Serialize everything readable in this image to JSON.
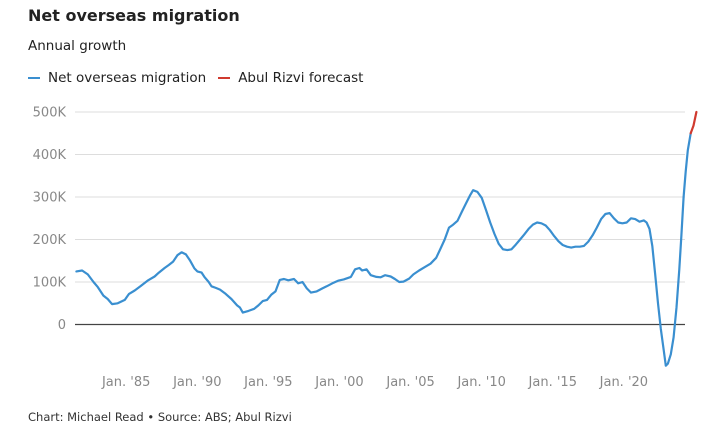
{
  "title": "Net overseas migration",
  "subtitle": "Annual growth",
  "source": "Chart: Michael Read • Source: ABS; Abul Rizvi",
  "colors": {
    "series": "#3a8fd0",
    "forecast": "#d03a2f",
    "grid": "#dddddd",
    "zero": "#444444",
    "ticks": "#888888"
  },
  "chart_data": {
    "type": "line",
    "ylim": [
      -100000,
      500000
    ],
    "xlim": [
      1981.4,
      2024.3
    ],
    "grid": true,
    "legend_position": "top-left",
    "y_ticks": [
      {
        "value": 0,
        "label": "0"
      },
      {
        "value": 100000,
        "label": "100K"
      },
      {
        "value": 200000,
        "label": "200K"
      },
      {
        "value": 300000,
        "label": "300K"
      },
      {
        "value": 400000,
        "label": "400K"
      },
      {
        "value": 500000,
        "label": "500K"
      }
    ],
    "x_ticks": [
      {
        "value": 1985,
        "label": "Jan. '85"
      },
      {
        "value": 1990,
        "label": "Jan. '90"
      },
      {
        "value": 1995,
        "label": "Jan. '95"
      },
      {
        "value": 2000,
        "label": "Jan. '00"
      },
      {
        "value": 2005,
        "label": "Jan. '05"
      },
      {
        "value": 2010,
        "label": "Jan. '10"
      },
      {
        "value": 2015,
        "label": "Jan. '15"
      },
      {
        "value": 2020,
        "label": "Jan. '20"
      }
    ],
    "series": [
      {
        "name": "Net overseas migration",
        "color": "#3a8fd0",
        "points": [
          [
            1981.5,
            125000
          ],
          [
            1981.9,
            127000
          ],
          [
            1982.3,
            118000
          ],
          [
            1982.7,
            100000
          ],
          [
            1983.0,
            88000
          ],
          [
            1983.4,
            68000
          ],
          [
            1983.7,
            60000
          ],
          [
            1984.0,
            48000
          ],
          [
            1984.4,
            50000
          ],
          [
            1984.9,
            58000
          ],
          [
            1985.2,
            72000
          ],
          [
            1985.6,
            80000
          ],
          [
            1986.0,
            90000
          ],
          [
            1986.5,
            103000
          ],
          [
            1987.0,
            113000
          ],
          [
            1987.3,
            122000
          ],
          [
            1987.7,
            133000
          ],
          [
            1988.0,
            140000
          ],
          [
            1988.3,
            148000
          ],
          [
            1988.6,
            163000
          ],
          [
            1988.9,
            170000
          ],
          [
            1989.2,
            165000
          ],
          [
            1989.5,
            150000
          ],
          [
            1989.8,
            132000
          ],
          [
            1990.0,
            125000
          ],
          [
            1990.3,
            122000
          ],
          [
            1990.5,
            112000
          ],
          [
            1990.8,
            100000
          ],
          [
            1991.0,
            90000
          ],
          [
            1991.3,
            86000
          ],
          [
            1991.6,
            82000
          ],
          [
            1992.0,
            72000
          ],
          [
            1992.4,
            60000
          ],
          [
            1992.8,
            45000
          ],
          [
            1993.0,
            40000
          ],
          [
            1993.2,
            28000
          ],
          [
            1993.6,
            32000
          ],
          [
            1994.0,
            37000
          ],
          [
            1994.3,
            45000
          ],
          [
            1994.6,
            55000
          ],
          [
            1994.9,
            58000
          ],
          [
            1995.2,
            70000
          ],
          [
            1995.5,
            78000
          ],
          [
            1995.8,
            105000
          ],
          [
            1996.1,
            107000
          ],
          [
            1996.4,
            104000
          ],
          [
            1996.8,
            107000
          ],
          [
            1997.1,
            97000
          ],
          [
            1997.4,
            100000
          ],
          [
            1997.7,
            85000
          ],
          [
            1998.0,
            75000
          ],
          [
            1998.4,
            78000
          ],
          [
            1998.8,
            85000
          ],
          [
            1999.1,
            90000
          ],
          [
            1999.5,
            97000
          ],
          [
            1999.9,
            103000
          ],
          [
            2000.3,
            106000
          ],
          [
            2000.8,
            112000
          ],
          [
            2001.1,
            130000
          ],
          [
            2001.4,
            133000
          ],
          [
            2001.6,
            127000
          ],
          [
            2001.9,
            130000
          ],
          [
            2002.2,
            116000
          ],
          [
            2002.6,
            112000
          ],
          [
            2002.9,
            111000
          ],
          [
            2003.2,
            116000
          ],
          [
            2003.6,
            113000
          ],
          [
            2003.9,
            107000
          ],
          [
            2004.2,
            100000
          ],
          [
            2004.5,
            101000
          ],
          [
            2004.9,
            108000
          ],
          [
            2005.2,
            118000
          ],
          [
            2005.6,
            127000
          ],
          [
            2006.0,
            135000
          ],
          [
            2006.4,
            143000
          ],
          [
            2006.8,
            157000
          ],
          [
            2007.1,
            178000
          ],
          [
            2007.4,
            200000
          ],
          [
            2007.7,
            228000
          ],
          [
            2008.0,
            235000
          ],
          [
            2008.3,
            244000
          ],
          [
            2008.6,
            265000
          ],
          [
            2008.9,
            285000
          ],
          [
            2009.2,
            305000
          ],
          [
            2009.4,
            316000
          ],
          [
            2009.7,
            312000
          ],
          [
            2010.0,
            298000
          ],
          [
            2010.3,
            270000
          ],
          [
            2010.6,
            240000
          ],
          [
            2010.9,
            213000
          ],
          [
            2011.2,
            190000
          ],
          [
            2011.5,
            177000
          ],
          [
            2011.8,
            175000
          ],
          [
            2012.1,
            177000
          ],
          [
            2012.4,
            188000
          ],
          [
            2012.7,
            200000
          ],
          [
            2013.0,
            212000
          ],
          [
            2013.3,
            225000
          ],
          [
            2013.6,
            235000
          ],
          [
            2013.9,
            240000
          ],
          [
            2014.2,
            238000
          ],
          [
            2014.5,
            233000
          ],
          [
            2014.8,
            222000
          ],
          [
            2015.1,
            208000
          ],
          [
            2015.4,
            196000
          ],
          [
            2015.7,
            187000
          ],
          [
            2016.0,
            183000
          ],
          [
            2016.3,
            181000
          ],
          [
            2016.6,
            183000
          ],
          [
            2016.9,
            183000
          ],
          [
            2017.2,
            185000
          ],
          [
            2017.5,
            195000
          ],
          [
            2017.8,
            210000
          ],
          [
            2018.1,
            228000
          ],
          [
            2018.4,
            248000
          ],
          [
            2018.7,
            260000
          ],
          [
            2019.0,
            262000
          ],
          [
            2019.3,
            250000
          ],
          [
            2019.6,
            240000
          ],
          [
            2019.9,
            238000
          ],
          [
            2020.2,
            240000
          ],
          [
            2020.5,
            250000
          ],
          [
            2020.8,
            248000
          ],
          [
            2021.1,
            242000
          ],
          [
            2021.4,
            245000
          ],
          [
            2021.6,
            240000
          ],
          [
            2021.8,
            225000
          ],
          [
            2022.0,
            185000
          ],
          [
            2022.2,
            120000
          ],
          [
            2022.4,
            50000
          ],
          [
            2022.6,
            -10000
          ],
          [
            2022.8,
            -60000
          ],
          [
            2022.95,
            -97000
          ],
          [
            2023.1,
            -92000
          ],
          [
            2023.3,
            -70000
          ],
          [
            2023.5,
            -30000
          ],
          [
            2023.7,
            40000
          ],
          [
            2023.9,
            130000
          ],
          [
            2024.05,
            210000
          ],
          [
            2024.2,
            300000
          ],
          [
            2024.35,
            360000
          ],
          [
            2024.5,
            410000
          ],
          [
            2024.7,
            450000
          ]
        ]
      },
      {
        "name": "Abul Rizvi forecast",
        "color": "#d03a2f",
        "points": [
          [
            2024.7,
            450000
          ],
          [
            2024.9,
            468000
          ],
          [
            2025.1,
            500000
          ]
        ]
      }
    ]
  }
}
